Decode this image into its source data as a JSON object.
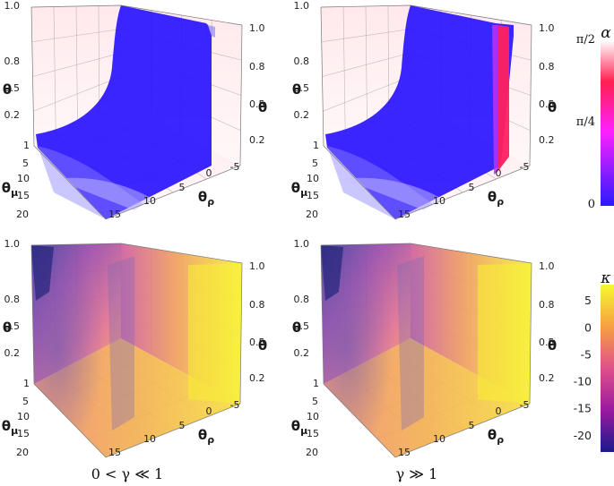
{
  "chart_data": [
    {
      "type": "3d-region",
      "panel": "top-left",
      "color_variable": "alpha",
      "axes": {
        "theta_mu": {
          "label": "θμ",
          "ticks": [
            "1",
            "5",
            "10",
            "15",
            "20"
          ]
        },
        "theta_rho": {
          "label": "θρ",
          "ticks": [
            "15",
            "10",
            "5",
            "0",
            "-5"
          ]
        },
        "theta_left": {
          "label": "θ",
          "ticks": [
            "0.2",
            "0.5",
            "0.8",
            "1.0"
          ]
        },
        "theta_right": {
          "label": "θ",
          "ticks": [
            "0.2",
            "0.5",
            "0.8",
            "1.0"
          ]
        }
      }
    },
    {
      "type": "3d-region",
      "panel": "top-right",
      "color_variable": "alpha",
      "axes": {
        "theta_mu": {
          "label": "θμ",
          "ticks": [
            "1",
            "5",
            "10",
            "15",
            "20"
          ]
        },
        "theta_rho": {
          "label": "θρ",
          "ticks": [
            "15",
            "10",
            "5",
            "0",
            "-5"
          ]
        },
        "theta_left": {
          "label": "θ",
          "ticks": [
            "0.2",
            "0.5",
            "0.8",
            "1.0"
          ]
        },
        "theta_right": {
          "label": "θ",
          "ticks": [
            "0.2",
            "0.5",
            "0.8",
            "1.0"
          ]
        }
      }
    },
    {
      "type": "3d-volume",
      "panel": "bottom-left",
      "color_variable": "kappa",
      "axes": {
        "theta_mu": {
          "label": "θμ",
          "ticks": [
            "1",
            "5",
            "10",
            "15",
            "20"
          ]
        },
        "theta_rho": {
          "label": "θρ",
          "ticks": [
            "15",
            "10",
            "5",
            "0",
            "-5"
          ]
        },
        "theta_left": {
          "label": "θ",
          "ticks": [
            "0.2",
            "0.5",
            "0.8",
            "1.0"
          ]
        },
        "theta_right": {
          "label": "θ",
          "ticks": [
            "0.2",
            "0.5",
            "0.8",
            "1.0"
          ]
        }
      }
    },
    {
      "type": "3d-volume",
      "panel": "bottom-right",
      "color_variable": "kappa",
      "axes": {
        "theta_mu": {
          "label": "θμ",
          "ticks": [
            "1",
            "5",
            "10",
            "15",
            "20"
          ]
        },
        "theta_rho": {
          "label": "θρ",
          "ticks": [
            "15",
            "10",
            "5",
            "0",
            "-5"
          ]
        },
        "theta_left": {
          "label": "θ",
          "ticks": [
            "0.2",
            "0.5",
            "0.8",
            "1.0"
          ]
        },
        "theta_right": {
          "label": "θ",
          "ticks": [
            "0.2",
            "0.5",
            "0.8",
            "1.0"
          ]
        }
      }
    }
  ],
  "captions": {
    "left": "0 < γ ≪ 1",
    "right": "γ ≫ 1"
  },
  "colorbars": {
    "alpha": {
      "title": "α",
      "ticks": [
        "π/2",
        "π/4",
        "0"
      ],
      "colors": [
        "#ffffff",
        "#ff2050",
        "#ff20ff",
        "#2a1aff"
      ]
    },
    "kappa": {
      "title": "κ",
      "ticks": [
        "5",
        "0",
        "-5",
        "-10",
        "-15",
        "-20"
      ],
      "range": [
        -23,
        8
      ],
      "colors": [
        "#1a1a8c",
        "#9a1aa0",
        "#e0508a",
        "#f6a040",
        "#f8f830"
      ]
    }
  },
  "colors": {
    "region_blue": "#2a14ff",
    "boundary_pink": "#ff2060",
    "grid": "#888888"
  }
}
